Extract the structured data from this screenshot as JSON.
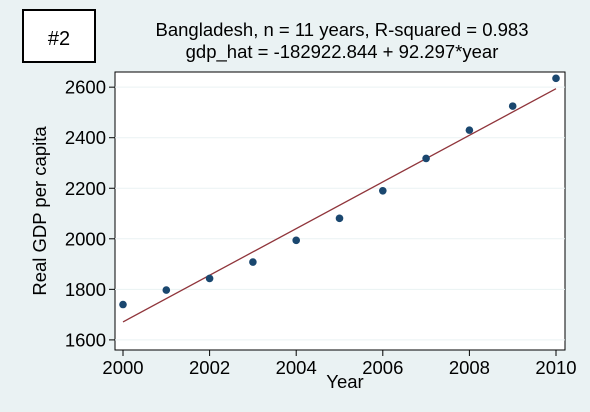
{
  "colors": {
    "background": "#eaf2f3",
    "plot_area": "#ffffff",
    "points": "#1a476f",
    "fit_line": "#90353b",
    "grid": "#eaf2f3"
  },
  "badge": {
    "label": "#2"
  },
  "chart_data": {
    "type": "scatter",
    "title": "Bangladesh, n = 11 years, R-squared = 0.983",
    "subtitle": "gdp_hat = -182922.844 + 92.297*year",
    "xlabel": "Year",
    "ylabel": "Real GDP per capita",
    "xlim": [
      2000,
      2010
    ],
    "ylim": [
      1560,
      2660
    ],
    "x_ticks": [
      2000,
      2002,
      2004,
      2006,
      2008,
      2010
    ],
    "y_ticks": [
      1600,
      1800,
      2000,
      2200,
      2400,
      2600
    ],
    "grid": true,
    "legend": "none",
    "series": [
      {
        "x": [
          2000,
          2001,
          2002,
          2003,
          2004,
          2005,
          2006,
          2007,
          2008,
          2009,
          2010
        ],
        "y": [
          1740,
          1797,
          1843,
          1908,
          1994,
          2081,
          2190,
          2318,
          2430,
          2525,
          2635
        ]
      }
    ],
    "fit_line": {
      "intercept": -182922.844,
      "slope": 92.297
    }
  }
}
